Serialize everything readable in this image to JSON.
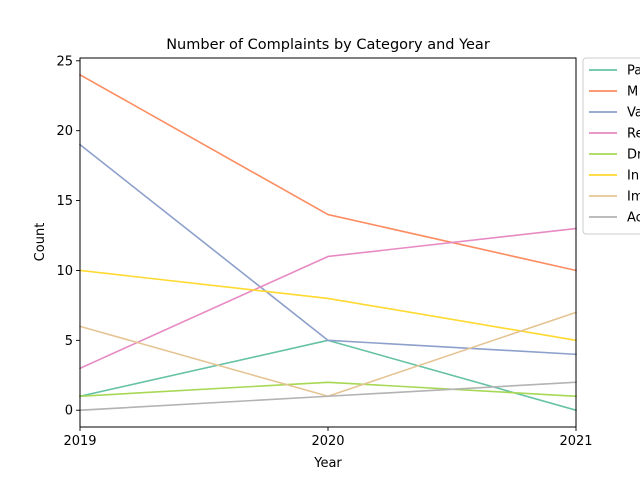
{
  "chart_data": {
    "type": "line",
    "title": "Number of Complaints by Category and Year",
    "xlabel": "Year",
    "ylabel": "Count",
    "x": [
      2019,
      2020,
      2021
    ],
    "xticks": [
      "2019",
      "2020",
      "2021"
    ],
    "yticks": [
      "0",
      "5",
      "10",
      "15",
      "20",
      "25"
    ],
    "ylim": [
      -1.2,
      25.2
    ],
    "grid": false,
    "legend_placement": "outside-top-right",
    "series": [
      {
        "name": "Pa",
        "color": "#66c2a5",
        "values": [
          1,
          5,
          0
        ]
      },
      {
        "name": "M",
        "color": "#fc8d62",
        "values": [
          24,
          14,
          10
        ]
      },
      {
        "name": "Va",
        "color": "#8da0cb",
        "values": [
          19,
          5,
          4
        ]
      },
      {
        "name": "Re",
        "color": "#e78ac3",
        "values": [
          3,
          11,
          13
        ]
      },
      {
        "name": "Dr",
        "color": "#a6d854",
        "values": [
          1,
          2,
          1
        ]
      },
      {
        "name": "In",
        "color": "#ffd92f",
        "values": [
          10,
          8,
          5
        ]
      },
      {
        "name": "Im",
        "color": "#e5c494",
        "values": [
          6,
          1,
          7
        ]
      },
      {
        "name": "Ac",
        "color": "#b3b3b3",
        "values": [
          0,
          1,
          2
        ]
      }
    ]
  }
}
